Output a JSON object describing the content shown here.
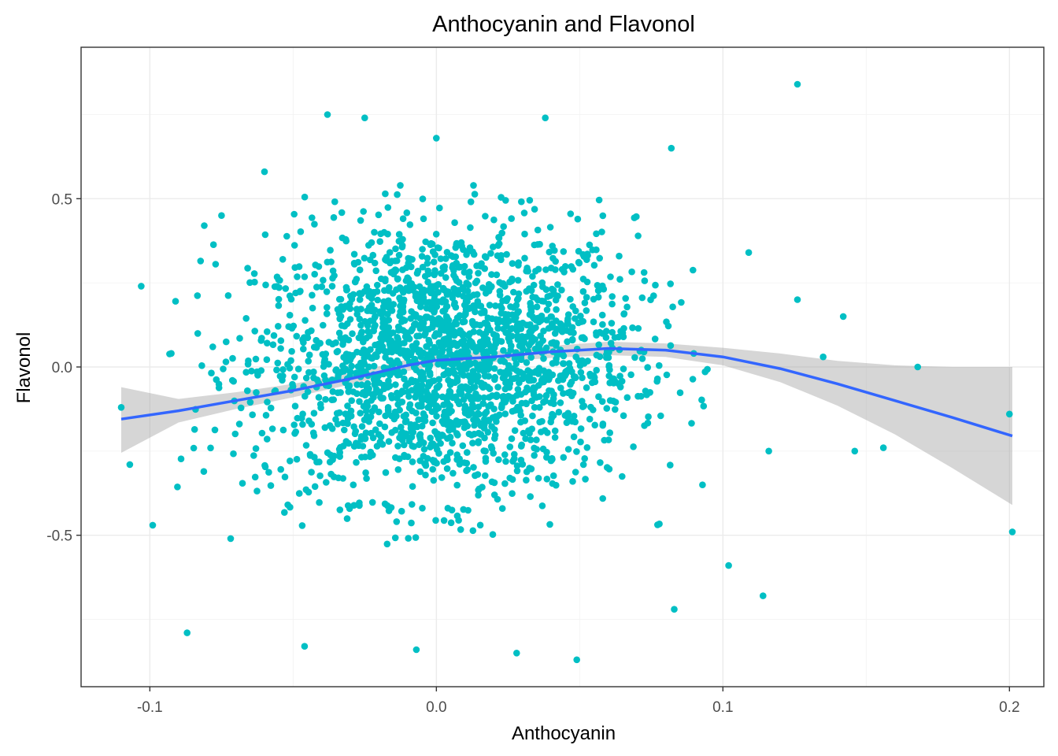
{
  "chart_data": {
    "type": "scatter",
    "title": "Anthocyanin and Flavonol",
    "xlabel": "Anthocyanin",
    "ylabel": "Flavonol",
    "xlim": [
      -0.124,
      0.212
    ],
    "ylim": [
      -0.95,
      0.95
    ],
    "x_ticks": [
      -0.1,
      0.0,
      0.1,
      0.2
    ],
    "x_tick_labels": [
      "-0.1",
      "0.0",
      "0.1",
      "0.2"
    ],
    "y_ticks": [
      -0.5,
      0.0,
      0.5
    ],
    "y_tick_labels": [
      "-0.5",
      "0.0",
      "0.5"
    ],
    "grid": true,
    "point_color": "#00BFC4",
    "smooth_color": "#3366FF",
    "ribbon_color": "#999999",
    "n_points_approx": 2200,
    "points_note_selected": [
      {
        "x": -0.11,
        "y": -0.12
      },
      {
        "x": -0.107,
        "y": -0.29
      },
      {
        "x": -0.103,
        "y": 0.24
      },
      {
        "x": -0.099,
        "y": -0.47
      },
      {
        "x": -0.087,
        "y": -0.79
      },
      {
        "x": -0.081,
        "y": 0.42
      },
      {
        "x": -0.075,
        "y": 0.45
      },
      {
        "x": -0.06,
        "y": 0.58
      },
      {
        "x": -0.046,
        "y": -0.83
      },
      {
        "x": -0.038,
        "y": 0.75
      },
      {
        "x": -0.025,
        "y": 0.74
      },
      {
        "x": 0.0,
        "y": 0.68
      },
      {
        "x": 0.038,
        "y": 0.74
      },
      {
        "x": 0.082,
        "y": 0.65
      },
      {
        "x": 0.126,
        "y": 0.84
      },
      {
        "x": 0.049,
        "y": -0.87
      },
      {
        "x": 0.028,
        "y": -0.85
      },
      {
        "x": -0.007,
        "y": -0.84
      },
      {
        "x": 0.083,
        "y": -0.72
      },
      {
        "x": 0.102,
        "y": -0.59
      },
      {
        "x": 0.114,
        "y": -0.68
      },
      {
        "x": 0.116,
        "y": -0.25
      },
      {
        "x": 0.146,
        "y": -0.25
      },
      {
        "x": 0.156,
        "y": -0.24
      },
      {
        "x": 0.168,
        "y": 0.0
      },
      {
        "x": 0.2,
        "y": -0.14
      },
      {
        "x": 0.201,
        "y": -0.49
      },
      {
        "x": 0.142,
        "y": 0.15
      },
      {
        "x": 0.126,
        "y": 0.2
      },
      {
        "x": 0.109,
        "y": 0.34
      },
      {
        "x": 0.135,
        "y": 0.03
      }
    ],
    "smooth": {
      "x": [
        -0.11,
        -0.09,
        -0.07,
        -0.05,
        -0.03,
        -0.01,
        0.0,
        0.02,
        0.04,
        0.06,
        0.08,
        0.1,
        0.12,
        0.14,
        0.16,
        0.18,
        0.201
      ],
      "y": [
        -0.155,
        -0.13,
        -0.1,
        -0.07,
        -0.035,
        0.005,
        0.02,
        0.03,
        0.045,
        0.055,
        0.05,
        0.03,
        -0.005,
        -0.05,
        -0.1,
        -0.15,
        -0.205
      ],
      "lower": [
        -0.255,
        -0.165,
        -0.125,
        -0.09,
        -0.052,
        -0.012,
        0.004,
        0.014,
        0.027,
        0.035,
        0.03,
        0.005,
        -0.045,
        -0.115,
        -0.2,
        -0.3,
        -0.41
      ],
      "upper": [
        -0.06,
        -0.095,
        -0.075,
        -0.05,
        -0.018,
        0.022,
        0.036,
        0.046,
        0.063,
        0.075,
        0.07,
        0.057,
        0.04,
        0.018,
        0.005,
        0.0,
        0.0
      ]
    }
  }
}
